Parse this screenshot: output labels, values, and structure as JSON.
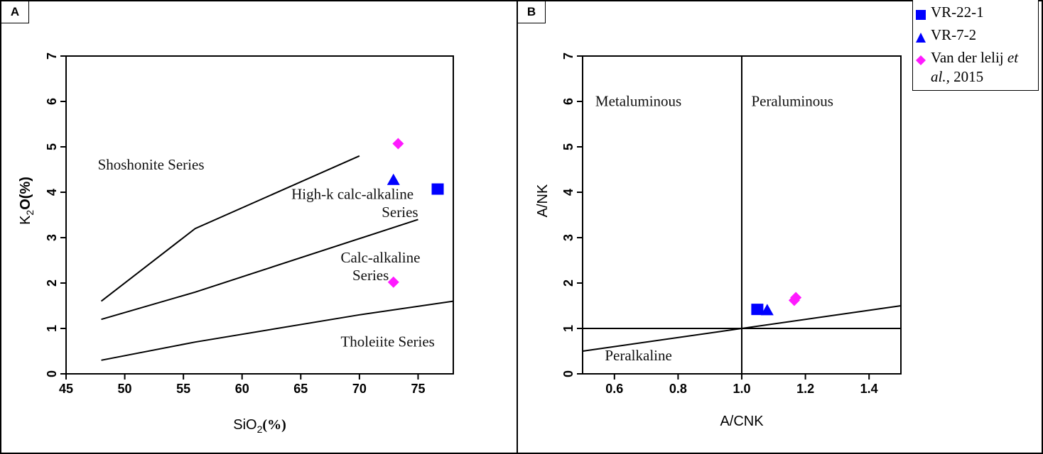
{
  "colors": {
    "blue": "#0000FF",
    "magenta": "#FF1AFF",
    "line": "#000000"
  },
  "panels": {
    "a": {
      "label": "A"
    },
    "b": {
      "label": "B"
    }
  },
  "legend": {
    "items": [
      {
        "label": "VR-22-1",
        "marker": "square",
        "color": "#0000FF"
      },
      {
        "label": "VR-7-2",
        "marker": "triangle",
        "color": "#0000FF"
      },
      {
        "label": "Van der lelij ",
        "label_italic": "et",
        "label_line2_italic": "al.,",
        "label_line2": " 2015",
        "marker": "diamond",
        "color": "#FF1AFF"
      }
    ]
  },
  "chart_data": [
    {
      "type": "scatter",
      "panel": "A",
      "title": "",
      "xlabel": "SiO2(%)",
      "xlabel_parts": [
        "SiO",
        "2",
        "(%)"
      ],
      "ylabel": "K2O(%)",
      "ylabel_parts": [
        "K",
        "2",
        "O(%)"
      ],
      "xlim": [
        45,
        78
      ],
      "ylim": [
        0,
        7
      ],
      "xticks": [
        45,
        50,
        55,
        60,
        65,
        70,
        75
      ],
      "yticks": [
        0,
        1,
        2,
        3,
        4,
        5,
        6,
        7
      ],
      "grid": false,
      "boundaries": [
        {
          "name": "shoshonite-boundary",
          "points": [
            [
              48,
              1.6
            ],
            [
              56,
              3.2
            ],
            [
              70,
              4.8
            ]
          ]
        },
        {
          "name": "high-k-boundary",
          "points": [
            [
              48,
              1.2
            ],
            [
              56,
              1.8
            ],
            [
              75,
              3.4
            ]
          ]
        },
        {
          "name": "tholeiite-boundary",
          "points": [
            [
              48,
              0.3
            ],
            [
              56,
              0.7
            ],
            [
              70,
              1.3
            ],
            [
              78,
              1.6
            ]
          ]
        }
      ],
      "regions": [
        {
          "text": "Shoshonite Series",
          "x": 47.7,
          "y": 4.5
        },
        {
          "text": "High-k calc-alkaline",
          "x": 64.2,
          "y": 3.85
        },
        {
          "text": "Series",
          "x": 71.9,
          "y": 3.45
        },
        {
          "text": "Calc-alkaline",
          "x": 68.4,
          "y": 2.45
        },
        {
          "text": "Series",
          "x": 69.4,
          "y": 2.06
        },
        {
          "text": "Tholeiite Series",
          "x": 68.4,
          "y": 0.6
        }
      ],
      "series": [
        {
          "name": "VR-22-1",
          "marker": "square",
          "color": "#0000FF",
          "points": [
            [
              76.7,
              4.07
            ]
          ]
        },
        {
          "name": "VR-7-2",
          "marker": "triangle",
          "color": "#0000FF",
          "points": [
            [
              72.9,
              4.27
            ]
          ]
        },
        {
          "name": "Van der lelij et al., 2015",
          "marker": "diamond",
          "color": "#FF1AFF",
          "points": [
            [
              73.3,
              5.07
            ],
            [
              72.9,
              2.02
            ]
          ]
        }
      ]
    },
    {
      "type": "scatter",
      "panel": "B",
      "title": "",
      "xlabel": "A/CNK",
      "ylabel": "A/NK",
      "xlim": [
        0.5,
        1.5
      ],
      "ylim": [
        0,
        7
      ],
      "xticks": [
        "0.6",
        "0.8",
        "1.0",
        "1.2",
        "1.4"
      ],
      "yticks": [
        0,
        1,
        2,
        3,
        4,
        5,
        6,
        7
      ],
      "grid": false,
      "boundaries": [
        {
          "name": "vertical-acnk-1",
          "points": [
            [
              1.0,
              0
            ],
            [
              1.0,
              7
            ]
          ]
        },
        {
          "name": "horizontal-ank-1",
          "points": [
            [
              0.5,
              1
            ],
            [
              1.5,
              1
            ]
          ]
        },
        {
          "name": "peralkaline-boundary",
          "points": [
            [
              0.5,
              0.5
            ],
            [
              1.5,
              1.5
            ]
          ]
        }
      ],
      "regions": [
        {
          "text": "Metaluminous",
          "x": 0.54,
          "y": 5.9
        },
        {
          "text": "Peraluminous",
          "x": 1.03,
          "y": 5.9
        },
        {
          "text": "Peralkaline",
          "x": 0.57,
          "y": 0.3
        }
      ],
      "series": [
        {
          "name": "VR-22-1",
          "marker": "square",
          "color": "#0000FF",
          "points": [
            [
              1.05,
              1.42
            ]
          ]
        },
        {
          "name": "VR-7-2",
          "marker": "triangle",
          "color": "#0000FF",
          "points": [
            [
              1.08,
              1.4
            ]
          ]
        },
        {
          "name": "Van der lelij et al., 2015",
          "marker": "diamond",
          "color": "#FF1AFF",
          "points": [
            [
              1.165,
              1.62
            ],
            [
              1.17,
              1.68
            ]
          ]
        }
      ]
    }
  ]
}
